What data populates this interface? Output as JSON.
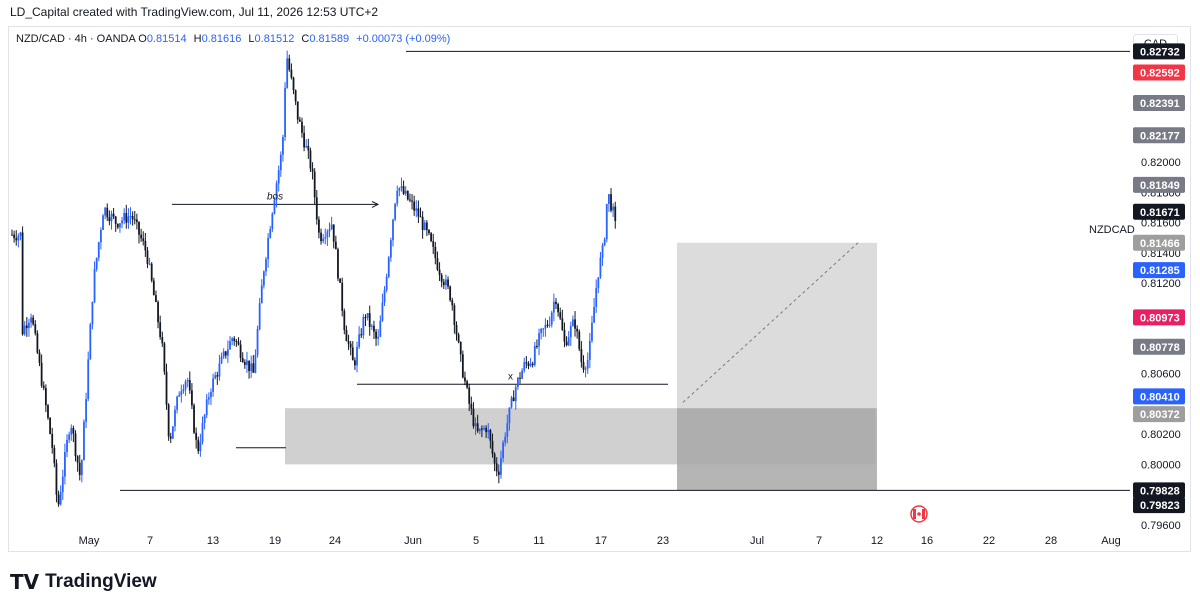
{
  "header": {
    "title": "LD_Capital created with TradingView.com, Jul 11, 2026 12:53 UTC+2"
  },
  "symbol_bar": {
    "name": "NZD/CAD · 4h · OANDA",
    "open_label": "O",
    "open": "0.81514",
    "high_label": "H",
    "high": "0.81616",
    "low_label": "L",
    "low": "0.81512",
    "close_label": "C",
    "close": "0.81589",
    "change": "+0.00073 (+0.09%)"
  },
  "currency_button": "CAD",
  "symbol_tag": "NZDCAD",
  "footer": {
    "brand": "TradingView"
  },
  "colors": {
    "bull": "#2962ff",
    "bear": "#131722",
    "zone": "#c8c8c8",
    "background": "#ffffff"
  },
  "chart_data": {
    "type": "candlestick",
    "symbol": "NZD/CAD",
    "timeframe": "4h",
    "ylim": [
      0.795,
      0.829
    ],
    "y_ticks": [
      "0.82000",
      "0.81800",
      "0.81600",
      "0.81400",
      "0.81200",
      "0.80600",
      "0.80200",
      "0.80000",
      "0.79600"
    ],
    "x_ticks": [
      "May",
      "7",
      "13",
      "19",
      "24",
      "Jun",
      "5",
      "11",
      "17",
      "23",
      "Jul",
      "7",
      "12",
      "16",
      "22",
      "28",
      "Aug"
    ],
    "price_tags": [
      {
        "value": "0.82732",
        "color": "#131722"
      },
      {
        "value": "0.82592",
        "color": "#f23645"
      },
      {
        "value": "0.82391",
        "color": "#787b86"
      },
      {
        "value": "0.82177",
        "color": "#787b86"
      },
      {
        "value": "0.81849",
        "color": "#787b86"
      },
      {
        "value": "0.81671",
        "color": "#131722"
      },
      {
        "value": "0.81466",
        "color": "#9e9e9e"
      },
      {
        "value": "0.81285",
        "color": "#2962ff"
      },
      {
        "value": "0.80973",
        "color": "#e91e63"
      },
      {
        "value": "0.80778",
        "color": "#787b86"
      },
      {
        "value": "0.80410",
        "color": "#2962ff"
      },
      {
        "value": "0.80372",
        "color": "#9e9e9e"
      },
      {
        "value": "0.79828",
        "color": "#131722"
      },
      {
        "value": "0.79823",
        "color": "#131722"
      }
    ],
    "path_keypoints": [
      [
        0.8065,
        0.8088
      ],
      [
        1.5,
        0.81
      ],
      [
        3.2,
        0.801
      ],
      [
        3.6,
        0.797
      ],
      [
        4.6,
        0.803
      ],
      [
        5.4,
        0.799
      ],
      [
        6.4,
        0.812
      ],
      [
        7.2,
        0.817
      ],
      [
        8.2,
        0.816
      ],
      [
        9.4,
        0.8165
      ],
      [
        10.6,
        0.814
      ],
      [
        11.8,
        0.808
      ],
      [
        12.4,
        0.8015
      ],
      [
        13.2,
        0.805
      ],
      [
        13.8,
        0.8058
      ],
      [
        14.6,
        0.8008
      ],
      [
        15.6,
        0.805
      ],
      [
        16.6,
        0.807
      ],
      [
        17.4,
        0.8085
      ],
      [
        18.3,
        0.807
      ],
      [
        19.0,
        0.806
      ],
      [
        19.8,
        0.8128
      ],
      [
        20.6,
        0.8175
      ],
      [
        21.3,
        0.821
      ],
      [
        21.6,
        0.8272
      ],
      [
        22.5,
        0.823
      ],
      [
        23.6,
        0.8195
      ],
      [
        24.2,
        0.815
      ],
      [
        25.2,
        0.816
      ],
      [
        26.2,
        0.809
      ],
      [
        26.9,
        0.8065
      ],
      [
        27.8,
        0.81
      ],
      [
        28.8,
        0.808
      ],
      [
        29.4,
        0.812
      ],
      [
        30.3,
        0.8185
      ],
      [
        31.2,
        0.8175
      ],
      [
        32.0,
        0.8165
      ],
      [
        32.8,
        0.815
      ],
      [
        33.6,
        0.813
      ],
      [
        34.6,
        0.811
      ],
      [
        35.3,
        0.807
      ],
      [
        36.0,
        0.804
      ],
      [
        36.6,
        0.802
      ],
      [
        37.4,
        0.8025
      ],
      [
        38.0,
        0.8
      ],
      [
        38.3,
        0.7995
      ],
      [
        38.8,
        0.802
      ],
      [
        39.6,
        0.805
      ],
      [
        40.3,
        0.8065
      ],
      [
        41.0,
        0.807
      ],
      [
        41.6,
        0.8085
      ],
      [
        42.3,
        0.8095
      ],
      [
        42.8,
        0.8112
      ],
      [
        43.5,
        0.808
      ],
      [
        44.3,
        0.8095
      ],
      [
        44.9,
        0.8065
      ],
      [
        45.4,
        0.807
      ],
      [
        46.1,
        0.8125
      ],
      [
        46.6,
        0.8145
      ],
      [
        46.9,
        0.818
      ],
      [
        47.3,
        0.8168
      ],
      [
        47.6,
        0.8152
      ]
    ],
    "annotations": [
      {
        "type": "bos-line",
        "label": "bos",
        "price": 0.8172
      },
      {
        "type": "liquidity-line",
        "label": "x",
        "price": 0.8053
      },
      {
        "type": "demand-zone",
        "top": 0.80372,
        "bottom": 0.8
      },
      {
        "type": "long-position",
        "entry": 0.80372,
        "target": 0.81466,
        "stop": 0.79828
      },
      {
        "type": "low-line",
        "price": 0.79828
      },
      {
        "type": "high-line",
        "price": 0.82732
      }
    ]
  }
}
